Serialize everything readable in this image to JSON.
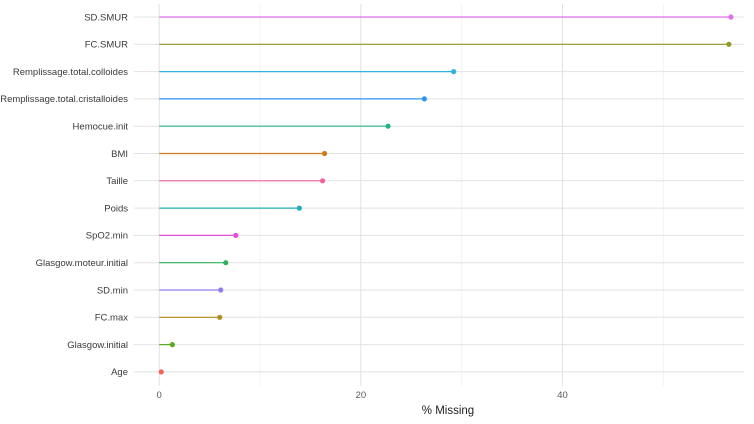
{
  "chart_data": {
    "type": "lollipop",
    "orientation": "horizontal",
    "xlabel": "% Missing",
    "ylabel": "",
    "xlim": [
      -2.5,
      58
    ],
    "x_ticks": [
      0,
      20,
      40
    ],
    "grid": true,
    "legend": "none",
    "categories": [
      "SD.SMUR",
      "FC.SMUR",
      "Remplissage.total.colloides",
      "Remplissage.total.cristalloides",
      "Hemocue.init",
      "BMI",
      "Taille",
      "Poids",
      "SpO2.min",
      "Glasgow.moteur.initial",
      "SD.min",
      "FC.max",
      "Glasgow.initial",
      "Age"
    ],
    "values": [
      56.7,
      56.5,
      29.2,
      26.3,
      22.7,
      16.4,
      16.2,
      13.9,
      7.6,
      6.6,
      6.1,
      6.0,
      1.3,
      0.2
    ],
    "colors": [
      "#e36ee6",
      "#8f9a24",
      "#2fb3e0",
      "#2c95f0",
      "#24b48a",
      "#cc7a1e",
      "#f0609e",
      "#22b0b6",
      "#e34fd6",
      "#2fb15a",
      "#8f80f2",
      "#b38d1e",
      "#5aab22",
      "#f4645f"
    ]
  }
}
